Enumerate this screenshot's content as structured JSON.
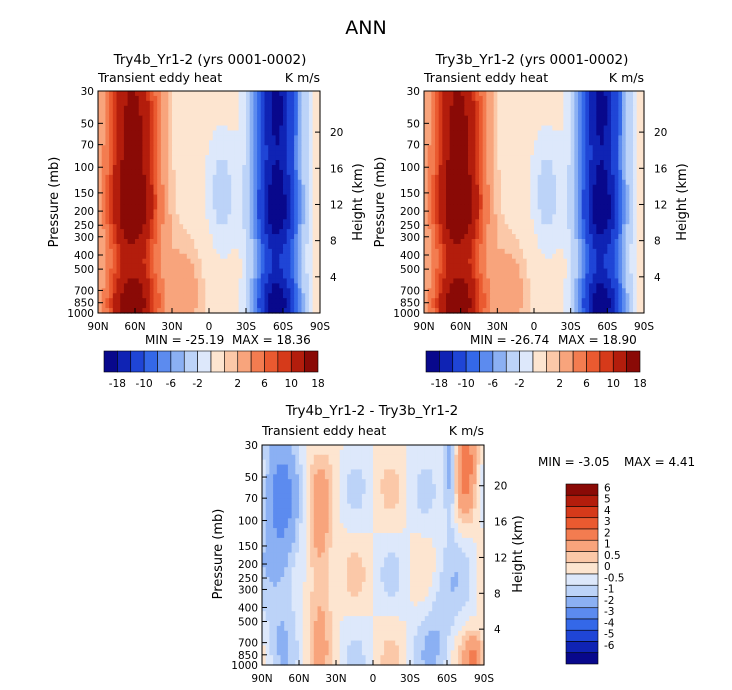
{
  "page_title": "ANN",
  "colors": {
    "main_scale": [
      "#08088c",
      "#0f23b4",
      "#1f45d6",
      "#3468e8",
      "#5c8bef",
      "#8bb0f3",
      "#bcd3f8",
      "#dde8fb",
      "#fde5d0",
      "#fbc8a8",
      "#f8a47c",
      "#f37c50",
      "#ea5a30",
      "#d63a1a",
      "#b31d0c",
      "#8a0a06"
    ],
    "diff_scale": [
      "#08088c",
      "#0f23b4",
      "#1f45d6",
      "#3468e8",
      "#5c8bef",
      "#8bb0f3",
      "#bcd3f8",
      "#dde8fb",
      "#fde5d0",
      "#fbc8a8",
      "#f8a47c",
      "#f37c50",
      "#ea5a30",
      "#d63a1a",
      "#b31d0c",
      "#8a0a06"
    ]
  },
  "chart_data": [
    {
      "type": "heatmap",
      "id": "panel1",
      "title": "Try4b_Yr1-2 (yrs 0001-0002)",
      "left_label": "Transient eddy heat",
      "right_label": "K m/s",
      "ylabel": "Pressure (mb)",
      "ylabel2": "Height (km)",
      "xticks": [
        "90N",
        "60N",
        "30N",
        "0",
        "30S",
        "60S",
        "90S"
      ],
      "xlim": [
        90,
        -90
      ],
      "yticks": [
        "30",
        "50",
        "70",
        "100",
        "150",
        "200",
        "250",
        "300",
        "400",
        "500",
        "700",
        "850",
        "1000"
      ],
      "ylim": [
        30,
        1000
      ],
      "yticks2": [
        "20",
        "16",
        "12",
        "8",
        "4"
      ],
      "min_label": "MIN = -25.19",
      "max_label": "MAX = 18.36",
      "levels": [
        -18,
        -14,
        -10,
        -8,
        -6,
        -4,
        -2,
        -1,
        1,
        2,
        4,
        6,
        8,
        10,
        14,
        18
      ],
      "colorbar_labels": [
        "-18",
        "-10",
        "-6",
        "-2",
        "2",
        "6",
        "10",
        "18"
      ]
    },
    {
      "type": "heatmap",
      "id": "panel2",
      "title": "Try3b_Yr1-2 (yrs 0001-0002)",
      "left_label": "Transient eddy heat",
      "right_label": "K m/s",
      "ylabel": "Pressure (mb)",
      "ylabel2": "Height (km)",
      "xticks": [
        "90N",
        "60N",
        "30N",
        "0",
        "30S",
        "60S",
        "90S"
      ],
      "xlim": [
        90,
        -90
      ],
      "yticks": [
        "30",
        "50",
        "70",
        "100",
        "150",
        "200",
        "250",
        "300",
        "400",
        "500",
        "700",
        "850",
        "1000"
      ],
      "ylim": [
        30,
        1000
      ],
      "yticks2": [
        "20",
        "16",
        "12",
        "8",
        "4"
      ],
      "min_label": "MIN = -26.74",
      "max_label": "MAX = 18.90",
      "levels": [
        -18,
        -14,
        -10,
        -8,
        -6,
        -4,
        -2,
        -1,
        1,
        2,
        4,
        6,
        8,
        10,
        14,
        18
      ],
      "colorbar_labels": [
        "-18",
        "-10",
        "-6",
        "-2",
        "2",
        "6",
        "10",
        "18"
      ]
    },
    {
      "type": "heatmap",
      "id": "panel3",
      "title": "Try4b_Yr1-2 - Try3b_Yr1-2",
      "left_label": "Transient eddy heat",
      "right_label": "K m/s",
      "ylabel": "Pressure (mb)",
      "ylabel2": "Height (km)",
      "xticks": [
        "90N",
        "60N",
        "30N",
        "0",
        "30S",
        "60S",
        "90S"
      ],
      "xlim": [
        90,
        -90
      ],
      "yticks": [
        "30",
        "50",
        "70",
        "100",
        "150",
        "200",
        "250",
        "300",
        "400",
        "500",
        "700",
        "850",
        "1000"
      ],
      "ylim": [
        30,
        1000
      ],
      "yticks2": [
        "20",
        "16",
        "12",
        "8",
        "4"
      ],
      "min_label": "MIN = -3.05",
      "max_label": "MAX = 4.41",
      "levels": [
        -6,
        -5,
        -4,
        -3,
        -2,
        -1,
        -0.5,
        0,
        0.5,
        1,
        2,
        3,
        4,
        5,
        6
      ],
      "colorbar_labels": [
        "6",
        "5",
        "4",
        "3",
        "2",
        "1",
        "0.5",
        "0",
        "-0.5",
        "-1",
        "-2",
        "-3",
        "-4",
        "-5",
        "-6"
      ]
    }
  ]
}
